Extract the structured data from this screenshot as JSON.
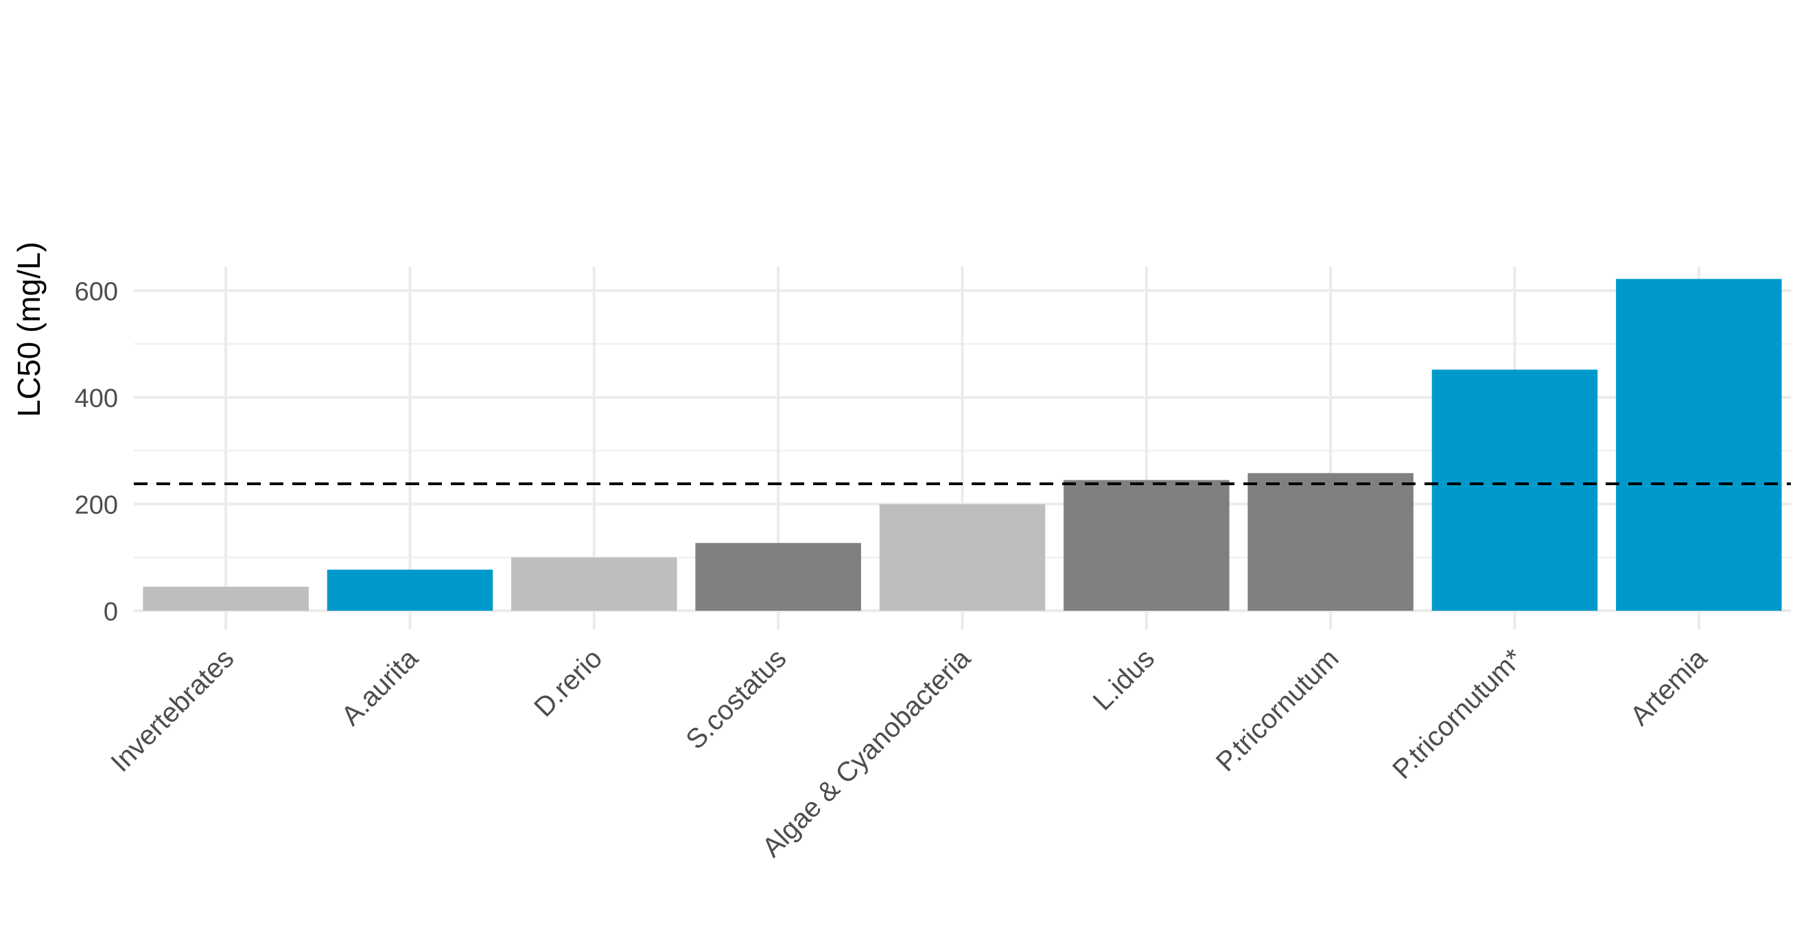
{
  "chart_data": {
    "type": "bar",
    "title": "",
    "xlabel": "",
    "ylabel": "LC50 (mg/L)",
    "ylim": [
      -35,
      645
    ],
    "yticks": [
      0,
      200,
      400,
      600
    ],
    "grid": true,
    "categories": [
      "Invertebrates",
      "A.aurita",
      "D.rerio",
      "S.costatus",
      "Algae & Cyanobacteria",
      "L.idus",
      "P.tricornutum",
      "P.tricornutum*",
      "Artemia"
    ],
    "values": [
      45,
      77,
      100,
      127,
      200,
      245,
      258,
      452,
      622
    ],
    "bar_colors": [
      "#bebebe",
      "#0099cc",
      "#bebebe",
      "#808080",
      "#bebebe",
      "#808080",
      "#808080",
      "#0099cc",
      "#0099cc"
    ],
    "reference_line": {
      "value": 238,
      "style": "dashed",
      "color": "#000000"
    }
  }
}
